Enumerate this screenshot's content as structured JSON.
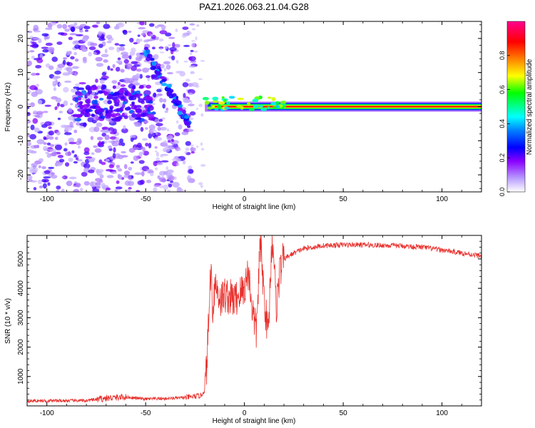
{
  "title": "PAZ1.2026.063.21.04.G28",
  "chart_data": [
    {
      "type": "heatmap",
      "xlabel": "Height of straight line (km)",
      "ylabel": "Frequency (Hz)",
      "xlim": [
        -110,
        120
      ],
      "ylim": [
        -25,
        25
      ],
      "xticks": [
        -100,
        -50,
        0,
        50,
        100
      ],
      "xtick_labels": [
        "-100",
        "-50",
        "0",
        "50",
        "100"
      ],
      "yticks": [
        -20,
        -10,
        0,
        10,
        20
      ],
      "ytick_labels": [
        "-20",
        "-10",
        "0",
        "10",
        "20"
      ],
      "colorbar": {
        "label": "Normalized spectral amplitude",
        "range": [
          0,
          1
        ],
        "ticks": [
          0,
          0.2,
          0.4,
          0.6,
          0.8
        ],
        "tick_labels": [
          "0.0",
          "0.2",
          "0.4",
          "0.6",
          "0.8"
        ],
        "colors": [
          "#ffffff",
          "#8a00ff",
          "#0000ff",
          "#00ffff",
          "#00ff00",
          "#ffff00",
          "#ff8000",
          "#ff0000",
          "#ff0090"
        ]
      },
      "features": [
        {
          "name": "carrier_line",
          "x_range": [
            -20,
            120
          ],
          "frequency_hz": 0,
          "amplitude": 1.0
        },
        {
          "name": "scattered_noise",
          "x_range": [
            -110,
            -25
          ],
          "frequency_range_hz": [
            -25,
            25
          ],
          "amplitude": 0.25
        },
        {
          "name": "cluster",
          "x": -65,
          "frequency_hz": 1,
          "amplitude": 0.3
        },
        {
          "name": "streak",
          "x_range": [
            -50,
            -28
          ],
          "frequency_range_hz": [
            16,
            -5
          ],
          "amplitude": 0.35
        }
      ]
    },
    {
      "type": "line",
      "xlabel": "Height of straight line (km)",
      "ylabel": "SNR (10 * v/v)",
      "xlim": [
        -110,
        120
      ],
      "ylim": [
        0,
        5800
      ],
      "xticks": [
        -100,
        -50,
        0,
        50,
        100
      ],
      "xtick_labels": [
        "-100",
        "-50",
        "0",
        "50",
        "100"
      ],
      "yticks": [
        1000,
        2000,
        3000,
        4000,
        5000
      ],
      "ytick_labels": [
        "1000",
        "2000",
        "3000",
        "4000",
        "5000"
      ],
      "color": "#e8302c",
      "series": [
        {
          "name": "SNR",
          "x": [
            -110,
            -80,
            -70,
            -60,
            -50,
            -40,
            -30,
            -22,
            -20,
            -19,
            -18,
            -17,
            -16,
            -15,
            -12,
            -10,
            -5,
            0,
            2,
            4,
            6,
            8,
            10,
            12,
            14,
            15,
            16,
            18,
            20,
            25,
            30,
            40,
            50,
            60,
            70,
            80,
            90,
            100,
            110,
            120
          ],
          "y": [
            170,
            180,
            260,
            300,
            230,
            250,
            280,
            350,
            550,
            1500,
            3000,
            4800,
            3200,
            4200,
            3600,
            3800,
            3600,
            4000,
            4600,
            3300,
            2500,
            5600,
            3700,
            2400,
            5800,
            5100,
            3300,
            4600,
            5000,
            5200,
            5350,
            5450,
            5480,
            5480,
            5460,
            5440,
            5400,
            5300,
            5200,
            5100
          ]
        }
      ]
    }
  ]
}
